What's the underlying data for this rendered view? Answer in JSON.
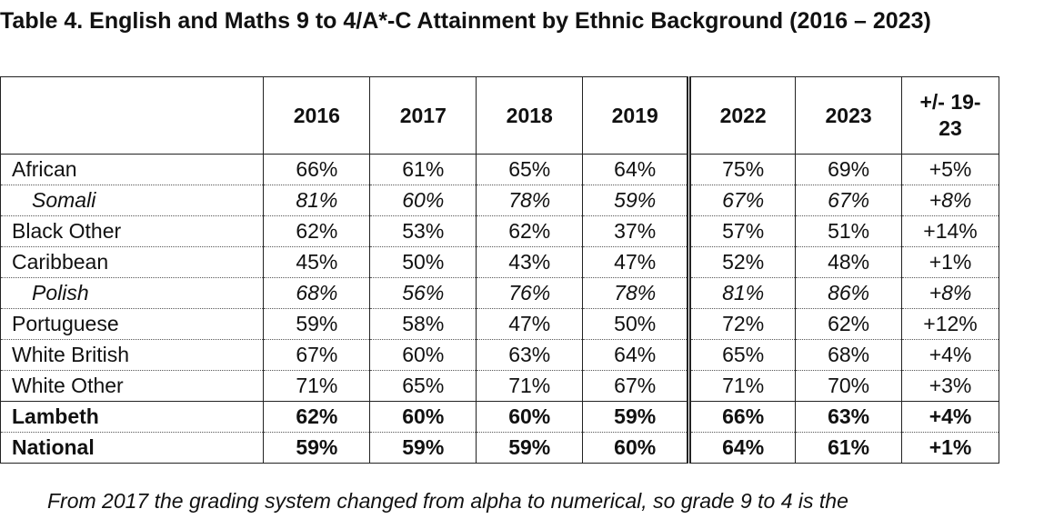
{
  "title": "Table 4. English and Maths 9 to 4/A*-C Attainment by Ethnic Background (2016 – 2023)",
  "table": {
    "columns": [
      "",
      "2016",
      "2017",
      "2018",
      "2019",
      "2022",
      "2023",
      "+/- 19-23"
    ],
    "rows": [
      {
        "label": "African",
        "values": [
          "66%",
          "61%",
          "65%",
          "64%",
          "75%",
          "69%",
          "+5%"
        ],
        "style": "normal"
      },
      {
        "label": "Somali",
        "values": [
          "81%",
          "60%",
          "78%",
          "59%",
          "67%",
          "67%",
          "+8%"
        ],
        "style": "italic"
      },
      {
        "label": "Black Other",
        "values": [
          "62%",
          "53%",
          "62%",
          "37%",
          "57%",
          "51%",
          "+14%"
        ],
        "style": "normal"
      },
      {
        "label": "Caribbean",
        "values": [
          "45%",
          "50%",
          "43%",
          "47%",
          "52%",
          "48%",
          "+1%"
        ],
        "style": "normal"
      },
      {
        "label": "Polish",
        "values": [
          "68%",
          "56%",
          "76%",
          "78%",
          "81%",
          "86%",
          "+8%"
        ],
        "style": "italic"
      },
      {
        "label": "Portuguese",
        "values": [
          "59%",
          "58%",
          "47%",
          "50%",
          "72%",
          "62%",
          "+12%"
        ],
        "style": "normal"
      },
      {
        "label": "White British",
        "values": [
          "67%",
          "60%",
          "63%",
          "64%",
          "65%",
          "68%",
          "+4%"
        ],
        "style": "normal"
      },
      {
        "label": "White Other",
        "values": [
          "71%",
          "65%",
          "71%",
          "67%",
          "71%",
          "70%",
          "+3%"
        ],
        "style": "normal"
      },
      {
        "label": "Lambeth",
        "values": [
          "62%",
          "60%",
          "60%",
          "59%",
          "66%",
          "63%",
          "+4%"
        ],
        "style": "bold"
      },
      {
        "label": "National",
        "values": [
          "59%",
          "59%",
          "59%",
          "60%",
          "64%",
          "61%",
          "+1%"
        ],
        "style": "bold"
      }
    ]
  },
  "note": "From 2017 the grading system changed from alpha to numerical, so grade 9 to 4 is the"
}
